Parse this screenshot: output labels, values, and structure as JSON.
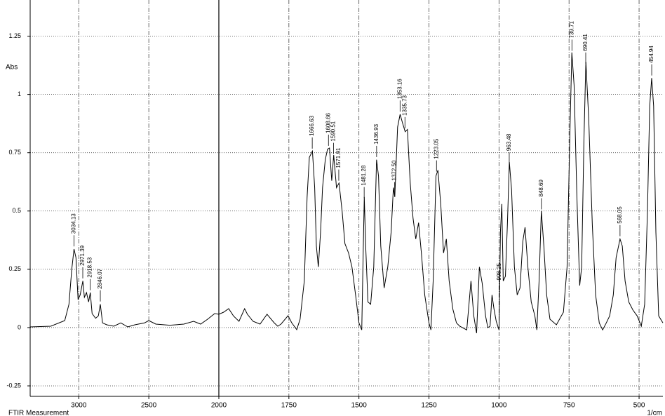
{
  "chart_data": {
    "type": "line",
    "y_label": "Abs",
    "x_label": "1/cm",
    "footer": "FTIR Measurement",
    "xlim": [
      3347,
      415
    ],
    "x_break": 2000,
    "xticks": [
      3000,
      2500,
      2000,
      1750,
      1500,
      1250,
      1000,
      750,
      500
    ],
    "ylim": [
      -0.295,
      1.405
    ],
    "yticks": [
      -0.25,
      0,
      0.25,
      0.5,
      0.75,
      1,
      1.25
    ],
    "grid": true,
    "series": [
      {
        "color": "#000000",
        "x": [
          3347,
          3200,
          3100,
          3070,
          3050,
          3034,
          3020,
          3005,
          2990,
          2971,
          2960,
          2945,
          2930,
          2918,
          2905,
          2880,
          2860,
          2846,
          2830,
          2800,
          2750,
          2700,
          2650,
          2600,
          2530,
          2500,
          2450,
          2350,
          2250,
          2180,
          2130,
          2080,
          2030,
          2000,
          1983,
          1965,
          1948,
          1928,
          1908,
          1898,
          1878,
          1853,
          1828,
          1803,
          1790,
          1778,
          1753,
          1740,
          1722,
          1710,
          1695,
          1685,
          1677,
          1666,
          1658,
          1652,
          1645,
          1637,
          1630,
          1620,
          1612,
          1605,
          1597,
          1590,
          1580,
          1571,
          1560,
          1550,
          1537,
          1525,
          1512,
          1500,
          1490,
          1486,
          1481,
          1476,
          1468,
          1458,
          1447,
          1437,
          1430,
          1422,
          1410,
          1397,
          1385,
          1377,
          1372,
          1362,
          1353,
          1345,
          1335,
          1327,
          1317,
          1307,
          1297,
          1287,
          1277,
          1265,
          1250,
          1243,
          1235,
          1225,
          1218,
          1208,
          1198,
          1188,
          1178,
          1165,
          1152,
          1140,
          1115,
          1100,
          1090,
          1080,
          1070,
          1060,
          1048,
          1040,
          1032,
          1025,
          1018,
          1010,
          1000,
          995,
          990,
          985,
          977,
          970,
          963,
          955,
          945,
          935,
          925,
          915,
          907,
          897,
          885,
          872,
          865,
          857,
          849,
          840,
          830,
          818,
          795,
          770,
          757,
          747,
          740,
          732,
          722,
          712,
          705,
          697,
          690,
          680,
          667,
          655,
          642,
          630,
          617,
          605,
          592,
          582,
          568,
          560,
          550,
          537,
          522,
          507,
          492,
          480,
          470,
          462,
          455,
          448,
          440,
          430,
          415
        ],
        "values": [
          0.003,
          0.006,
          0.03,
          0.1,
          0.25,
          0.337,
          0.3,
          0.12,
          0.14,
          0.2,
          0.13,
          0.15,
          0.11,
          0.15,
          0.06,
          0.04,
          0.05,
          0.1,
          0.02,
          0.012,
          0.006,
          0.02,
          0.003,
          0.012,
          0.02,
          0.03,
          0.015,
          0.01,
          0.015,
          0.027,
          0.015,
          0.036,
          0.06,
          0.057,
          0.066,
          0.081,
          0.05,
          0.027,
          0.081,
          0.057,
          0.027,
          0.015,
          0.057,
          0.021,
          0.006,
          0.015,
          0.051,
          0.021,
          -0.009,
          0.036,
          0.2,
          0.56,
          0.73,
          0.757,
          0.6,
          0.35,
          0.26,
          0.41,
          0.6,
          0.72,
          0.765,
          0.77,
          0.63,
          0.74,
          0.6,
          0.62,
          0.5,
          0.36,
          0.32,
          0.26,
          0.14,
          0.02,
          -0.01,
          0.25,
          0.56,
          0.35,
          0.11,
          0.1,
          0.26,
          0.72,
          0.65,
          0.35,
          0.17,
          0.26,
          0.41,
          0.6,
          0.56,
          0.86,
          0.915,
          0.88,
          0.84,
          0.85,
          0.62,
          0.47,
          0.38,
          0.45,
          0.32,
          0.14,
          0.02,
          -0.01,
          0.2,
          0.65,
          0.675,
          0.53,
          0.32,
          0.38,
          0.2,
          0.08,
          0.02,
          0.006,
          -0.01,
          0.2,
          0.05,
          -0.024,
          0.26,
          0.19,
          0.05,
          0,
          0.006,
          0.14,
          0.08,
          0.027,
          -0.01,
          0.41,
          0.53,
          0.2,
          0.22,
          0.44,
          0.71,
          0.59,
          0.26,
          0.14,
          0.17,
          0.37,
          0.43,
          0.26,
          0.11,
          0.05,
          -0.01,
          0.2,
          0.5,
          0.35,
          0.14,
          0.036,
          0.012,
          0.066,
          0.26,
          0.83,
          1.18,
          1.04,
          0.56,
          0.18,
          0.26,
          0.8,
          1.14,
          0.9,
          0.44,
          0.14,
          0.02,
          -0.01,
          0.02,
          0.05,
          0.14,
          0.3,
          0.38,
          0.35,
          0.2,
          0.11,
          0.075,
          0.05,
          0.006,
          0.1,
          0.5,
          0.95,
          1.07,
          0.95,
          0.41,
          0.05,
          0.02
        ]
      }
    ],
    "peaks": [
      3034.13,
      2971.39,
      2918.53,
      2846.07,
      1666.63,
      1608.66,
      1590.51,
      1571.91,
      1481.28,
      1436.93,
      {
        "value": 1372.5,
        "label": "1372.50"
      },
      1353.16,
      1335.73,
      1223.05,
      998.25,
      963.48,
      848.69,
      739.71,
      690.41,
      568.05,
      454.94
    ]
  }
}
